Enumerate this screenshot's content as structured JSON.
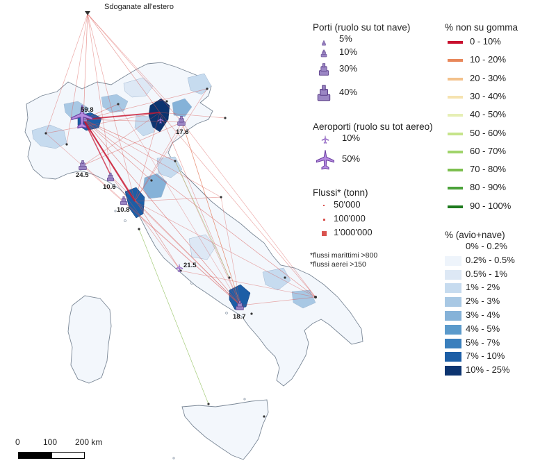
{
  "top_label": "Sdoganate all'estero",
  "ports": {
    "title": "Porti (ruolo su tot nave)",
    "items": [
      {
        "label": "5%",
        "size": 1
      },
      {
        "label": "10%",
        "size": 2
      },
      {
        "label": "30%",
        "size": 3
      },
      {
        "label": "40%",
        "size": 4
      }
    ]
  },
  "airports": {
    "title": "Aeroporti (ruolo su tot aereo)",
    "items": [
      {
        "label": "10%",
        "size": 1
      },
      {
        "label": "50%",
        "size": 3
      }
    ]
  },
  "flows": {
    "title": "Flussi* (tonn)",
    "items": [
      {
        "label": "50'000",
        "size": 1
      },
      {
        "label": "100'000",
        "size": 2
      },
      {
        "label": "1'000'000",
        "size": 3
      }
    ],
    "notes": [
      "*flussi marittimi  >800",
      "*flussi aerei >150"
    ]
  },
  "non_road": {
    "title": "% non su gomma",
    "items": [
      {
        "label": "0 - 10%",
        "color": "#c8102e"
      },
      {
        "label": "10 - 20%",
        "color": "#e8875a"
      },
      {
        "label": "20 - 30%",
        "color": "#f3c18b"
      },
      {
        "label": "30 - 40%",
        "color": "#f6e3b0"
      },
      {
        "label": "40 - 50%",
        "color": "#e6efb5"
      },
      {
        "label": "50 - 60%",
        "color": "#c6e48a"
      },
      {
        "label": "60 - 70%",
        "color": "#a0d46a"
      },
      {
        "label": "70 - 80%",
        "color": "#7cbf4e"
      },
      {
        "label": "80 - 90%",
        "color": "#4ba23a"
      },
      {
        "label": "90 - 100%",
        "color": "#1e7a1e"
      }
    ]
  },
  "share": {
    "title": "% (avio+nave)",
    "items": [
      {
        "label": "0% - 0.2%",
        "color": "#ffffff"
      },
      {
        "label": "0.2% - 0.5%",
        "color": "#eef4fb"
      },
      {
        "label": "0.5% - 1%",
        "color": "#dde8f5"
      },
      {
        "label": "1% - 2%",
        "color": "#c6dbef"
      },
      {
        "label": "2% - 3%",
        "color": "#a8c8e4"
      },
      {
        "label": "3% - 4%",
        "color": "#85b2d8"
      },
      {
        "label": "4% - 5%",
        "color": "#5b9acb"
      },
      {
        "label": "5% - 7%",
        "color": "#3a7fbd"
      },
      {
        "label": "7% - 10%",
        "color": "#1c5ea6"
      },
      {
        "label": "10% - 25%",
        "color": "#0c3470"
      }
    ]
  },
  "map_values": [
    {
      "label": "59.8",
      "color": "#111111"
    },
    {
      "label": "17.6",
      "color": "#7b3fa0"
    },
    {
      "label": "24.5",
      "color": "#7b3fa0"
    },
    {
      "label": "10.6",
      "color": "#7b3fa0"
    },
    {
      "label": "10.8",
      "color": "#7b3fa0"
    },
    {
      "label": "21.5",
      "color": "#111111"
    },
    {
      "label": "18.7",
      "color": "#7b3fa0"
    }
  ],
  "scale": {
    "ticks": [
      "0",
      "100",
      "200 km"
    ]
  },
  "colors": {
    "port_fill": "#9b86c4",
    "port_stroke": "#5a3d88",
    "airport_fill": "#b58be0",
    "flow_red": "#d9534f",
    "flow_green": "#8fbf5a",
    "land": "#f3f7fc",
    "border": "#7a8796"
  }
}
